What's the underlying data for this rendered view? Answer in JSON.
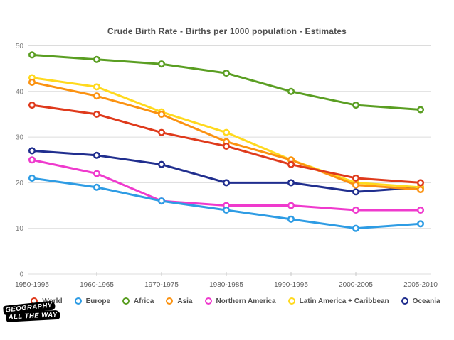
{
  "title": "Crude Birth Rate - Births per 1000 population - Estimates",
  "logo": {
    "lines": [
      "GEOGRAPHY",
      "ALL THE WAY"
    ]
  },
  "chart_data": {
    "type": "line",
    "categories": [
      "1950-1995",
      "1960-1965",
      "1970-1975",
      "1980-1985",
      "1990-1995",
      "2000-2005",
      "2005-2010"
    ],
    "series": [
      {
        "name": "World",
        "color": "#df3a1c",
        "values": [
          37,
          35,
          31,
          28,
          24,
          21,
          20
        ]
      },
      {
        "name": "Europe",
        "color": "#2e9ce4",
        "values": [
          21,
          19,
          16,
          14,
          12,
          10,
          11
        ]
      },
      {
        "name": "Africa",
        "color": "#5a9e22",
        "values": [
          48,
          47,
          46,
          44,
          40,
          37,
          36
        ]
      },
      {
        "name": "Asia",
        "color": "#fb9211",
        "values": [
          42,
          39,
          35,
          29,
          25,
          19.5,
          18.5
        ]
      },
      {
        "name": "Northern America",
        "color": "#ef3acd",
        "values": [
          25,
          22,
          16,
          15,
          15,
          14,
          14
        ]
      },
      {
        "name": "Latin America + Caribbean",
        "color": "#ffd91e",
        "values": [
          43,
          41,
          35.5,
          31,
          25,
          20,
          19
        ]
      },
      {
        "name": "Oceania",
        "color": "#202e8e",
        "values": [
          27,
          26,
          24,
          20,
          20,
          18,
          19
        ]
      }
    ],
    "title": "Crude Birth Rate - Births per 1000 population - Estimates",
    "xlabel": "",
    "ylabel": "",
    "ylim": [
      0,
      50
    ],
    "yticks": [
      0,
      10,
      20,
      30,
      40,
      50
    ],
    "grid": true,
    "legend_position": "bottom",
    "marker": "open-circle"
  },
  "style": {
    "grid_color": "#dcdcdc",
    "tick_color": "#c9c9c9",
    "y_label_color": "#7b7b7b",
    "x_label_color": "#5f5f5f",
    "title_color": "#4f4f4f"
  }
}
